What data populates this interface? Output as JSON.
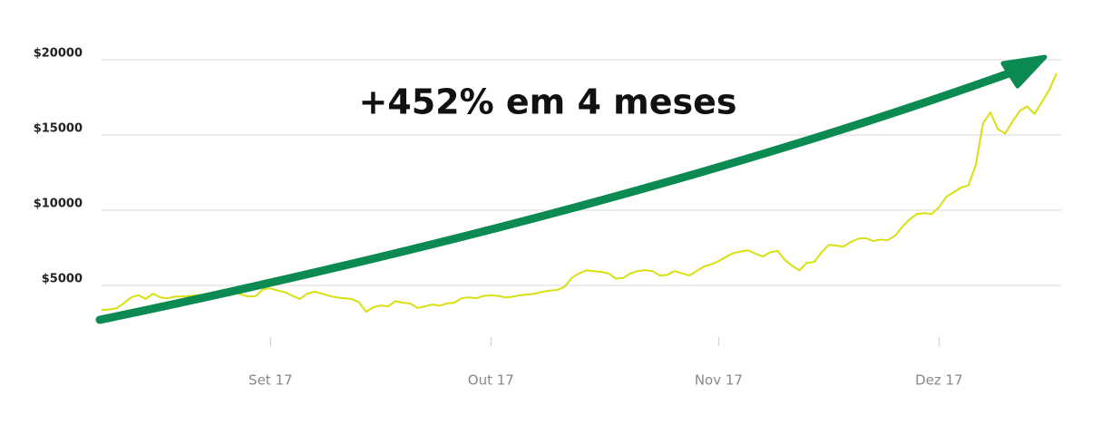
{
  "chart_data": {
    "type": "line",
    "annotation": "+452% em 4 meses",
    "categories": [
      null,
      null,
      null,
      null,
      null,
      null,
      null,
      null,
      null,
      null,
      null,
      null,
      null,
      null,
      null,
      null,
      null,
      null,
      null,
      null,
      null,
      null,
      null,
      "Set 17",
      null,
      null,
      null,
      null,
      null,
      null,
      null,
      null,
      null,
      null,
      null,
      null,
      null,
      null,
      null,
      null,
      null,
      null,
      null,
      null,
      null,
      null,
      null,
      null,
      null,
      null,
      null,
      null,
      null,
      "Out 17",
      null,
      null,
      null,
      null,
      null,
      null,
      null,
      null,
      null,
      null,
      null,
      null,
      null,
      null,
      null,
      null,
      null,
      null,
      null,
      null,
      null,
      null,
      null,
      null,
      null,
      null,
      null,
      null,
      null,
      null,
      "Nov 17",
      null,
      null,
      null,
      null,
      null,
      null,
      null,
      null,
      null,
      null,
      null,
      null,
      null,
      null,
      null,
      null,
      null,
      null,
      null,
      null,
      null,
      null,
      null,
      null,
      null,
      null,
      null,
      null,
      null,
      "Dez 17",
      null,
      null,
      null,
      null,
      null,
      null,
      null,
      null,
      null,
      null,
      null,
      null,
      null,
      null,
      null,
      null
    ],
    "series": [
      {
        "color": "#d8e00f",
        "values": [
          3370,
          3400,
          3480,
          3800,
          4200,
          4350,
          4100,
          4450,
          4200,
          4150,
          4250,
          4270,
          4300,
          4350,
          4380,
          4420,
          4480,
          4530,
          4560,
          4400,
          4250,
          4300,
          4750,
          4800,
          4650,
          4550,
          4300,
          4100,
          4450,
          4580,
          4450,
          4300,
          4200,
          4150,
          4100,
          3900,
          3250,
          3550,
          3670,
          3600,
          3950,
          3850,
          3800,
          3500,
          3600,
          3730,
          3650,
          3800,
          3850,
          4150,
          4200,
          4150,
          4300,
          4340,
          4300,
          4200,
          4250,
          4350,
          4400,
          4450,
          4580,
          4650,
          4700,
          4900,
          5500,
          5800,
          6000,
          5950,
          5900,
          5800,
          5450,
          5500,
          5800,
          5950,
          6020,
          5950,
          5650,
          5700,
          5950,
          5800,
          5660,
          5950,
          6260,
          6400,
          6620,
          6900,
          7150,
          7250,
          7340,
          7100,
          6920,
          7200,
          7300,
          6700,
          6300,
          6000,
          6500,
          6550,
          7200,
          7700,
          7650,
          7580,
          7900,
          8100,
          8150,
          7950,
          8050,
          8000,
          8300,
          8900,
          9400,
          9750,
          9800,
          9750,
          10200,
          10900,
          11200,
          11500,
          11650,
          13000,
          15800,
          16500,
          15400,
          15100,
          15900,
          16600,
          16900,
          16400,
          17200,
          18000,
          19100
        ]
      }
    ],
    "ylim": [
      0,
      20000
    ],
    "yticks": [
      {
        "value": 5000,
        "label": "$5000"
      },
      {
        "value": 10000,
        "label": "$10000"
      },
      {
        "value": 15000,
        "label": "$15000"
      },
      {
        "value": 20000,
        "label": "$20000"
      }
    ],
    "grid": true
  }
}
